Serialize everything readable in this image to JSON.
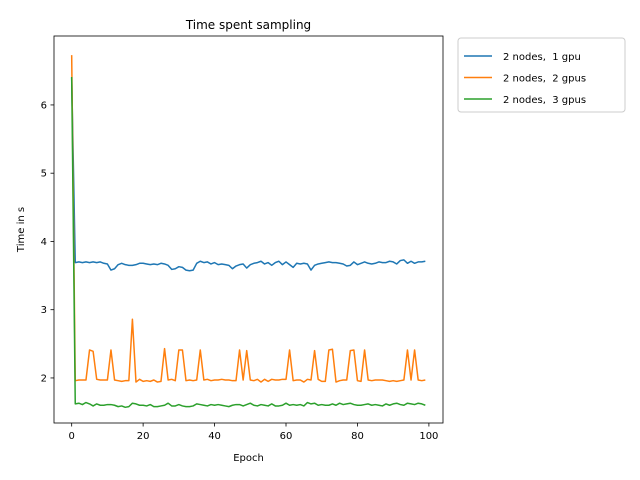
{
  "chart_data": {
    "type": "line",
    "title": "Time spent sampling",
    "xlabel": "Epoch",
    "ylabel": "Time in s",
    "xlim": [
      -4.95,
      103.95
    ],
    "ylim": [
      1.34,
      7.01
    ],
    "xticks": [
      0,
      20,
      40,
      60,
      80,
      100
    ],
    "yticks": [
      2,
      3,
      4,
      5,
      6
    ],
    "grid": false,
    "legend_position": "outside-top-right",
    "series": [
      {
        "name": "2 nodes,  1 gpu",
        "color": "#1f77b4",
        "values": [
          6.4,
          3.69,
          3.7,
          3.69,
          3.7,
          3.69,
          3.7,
          3.69,
          3.7,
          3.68,
          3.67,
          3.58,
          3.6,
          3.66,
          3.68,
          3.66,
          3.65,
          3.65,
          3.66,
          3.68,
          3.68,
          3.67,
          3.66,
          3.67,
          3.66,
          3.68,
          3.67,
          3.65,
          3.59,
          3.6,
          3.63,
          3.62,
          3.58,
          3.57,
          3.58,
          3.68,
          3.71,
          3.69,
          3.7,
          3.67,
          3.69,
          3.66,
          3.67,
          3.66,
          3.65,
          3.6,
          3.64,
          3.66,
          3.67,
          3.61,
          3.66,
          3.68,
          3.69,
          3.71,
          3.67,
          3.69,
          3.65,
          3.69,
          3.71,
          3.66,
          3.7,
          3.66,
          3.62,
          3.68,
          3.67,
          3.68,
          3.67,
          3.58,
          3.65,
          3.67,
          3.68,
          3.69,
          3.7,
          3.69,
          3.69,
          3.68,
          3.67,
          3.64,
          3.65,
          3.7,
          3.66,
          3.68,
          3.7,
          3.68,
          3.67,
          3.68,
          3.7,
          3.69,
          3.69,
          3.71,
          3.7,
          3.67,
          3.72,
          3.73,
          3.68,
          3.71,
          3.68,
          3.7,
          3.7,
          3.71
        ]
      },
      {
        "name": "2 nodes,  2 gpus",
        "color": "#ff7f0e",
        "values": [
          6.73,
          1.96,
          1.97,
          1.97,
          1.97,
          2.41,
          2.39,
          1.98,
          1.97,
          1.97,
          1.97,
          2.41,
          1.97,
          1.96,
          1.95,
          1.96,
          1.96,
          2.86,
          1.94,
          1.98,
          1.95,
          1.96,
          1.95,
          1.97,
          1.94,
          1.95,
          2.43,
          1.97,
          1.98,
          1.96,
          2.41,
          2.41,
          1.96,
          1.97,
          1.96,
          1.97,
          2.41,
          1.97,
          1.98,
          1.96,
          1.97,
          1.97,
          1.98,
          1.97,
          1.97,
          1.96,
          1.96,
          2.41,
          1.97,
          2.4,
          1.97,
          1.96,
          1.98,
          1.94,
          1.98,
          1.95,
          1.98,
          1.97,
          1.97,
          1.98,
          1.98,
          2.41,
          1.96,
          1.97,
          1.97,
          1.94,
          1.98,
          1.97,
          2.4,
          1.98,
          1.95,
          1.95,
          2.41,
          2.42,
          1.94,
          1.96,
          1.97,
          1.97,
          2.4,
          2.41,
          1.96,
          1.95,
          2.41,
          1.97,
          1.96,
          1.97,
          1.97,
          1.97,
          1.96,
          1.95,
          1.96,
          1.95,
          1.96,
          1.97,
          2.41,
          1.97,
          2.41,
          1.97,
          1.96,
          1.97
        ]
      },
      {
        "name": "2 nodes,  3 gpus",
        "color": "#2ca02c",
        "values": [
          6.41,
          1.62,
          1.63,
          1.61,
          1.64,
          1.62,
          1.59,
          1.62,
          1.6,
          1.6,
          1.61,
          1.61,
          1.6,
          1.58,
          1.59,
          1.57,
          1.58,
          1.63,
          1.62,
          1.6,
          1.6,
          1.59,
          1.61,
          1.58,
          1.58,
          1.59,
          1.6,
          1.63,
          1.59,
          1.59,
          1.61,
          1.59,
          1.58,
          1.58,
          1.59,
          1.62,
          1.61,
          1.6,
          1.59,
          1.61,
          1.6,
          1.61,
          1.6,
          1.59,
          1.58,
          1.6,
          1.61,
          1.61,
          1.59,
          1.61,
          1.63,
          1.6,
          1.59,
          1.61,
          1.6,
          1.59,
          1.62,
          1.59,
          1.59,
          1.6,
          1.63,
          1.6,
          1.61,
          1.6,
          1.61,
          1.59,
          1.64,
          1.62,
          1.63,
          1.6,
          1.61,
          1.6,
          1.6,
          1.62,
          1.6,
          1.63,
          1.61,
          1.62,
          1.63,
          1.61,
          1.6,
          1.6,
          1.61,
          1.62,
          1.6,
          1.61,
          1.6,
          1.59,
          1.62,
          1.6,
          1.62,
          1.63,
          1.61,
          1.6,
          1.63,
          1.62,
          1.61,
          1.63,
          1.62,
          1.6
        ]
      }
    ]
  }
}
